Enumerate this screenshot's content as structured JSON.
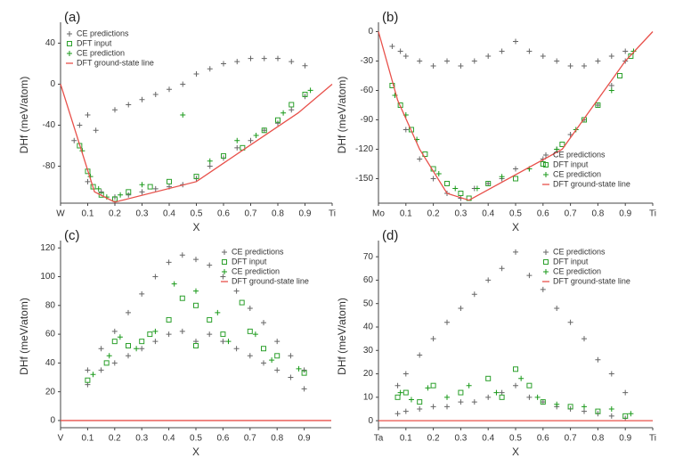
{
  "chart_data": [
    {
      "type": "scatter",
      "label": "(a)",
      "xlabel": "X",
      "ylabel": "DHf (meV/atom)",
      "legend": "upper left",
      "xlim": [
        0,
        1
      ],
      "ylim": [
        -116,
        56
      ],
      "xticks": [
        {
          "value": 0,
          "label": "W"
        },
        0.1,
        0.2,
        0.3,
        0.4,
        0.5,
        0.6,
        0.7,
        0.8,
        0.9,
        {
          "value": 1,
          "label": "Ti"
        }
      ],
      "yticks": [
        40,
        0,
        -40,
        -80
      ],
      "series": [
        {
          "name": "CE predictions",
          "color": "#666666",
          "marker": "plus",
          "x": [
            0.05,
            0.07,
            0.1,
            0.1,
            0.13,
            0.15,
            0.2,
            0.2,
            0.25,
            0.25,
            0.3,
            0.3,
            0.35,
            0.35,
            0.4,
            0.4,
            0.45,
            0.45,
            0.5,
            0.5,
            0.55,
            0.55,
            0.6,
            0.6,
            0.65,
            0.65,
            0.7,
            0.7,
            0.75,
            0.75,
            0.8,
            0.8,
            0.85,
            0.85,
            0.9,
            0.9
          ],
          "y": [
            -55,
            -40,
            -30,
            -95,
            -45,
            -105,
            -25,
            -110,
            -20,
            -108,
            -15,
            -105,
            -10,
            -102,
            -5,
            -100,
            0,
            -98,
            10,
            -92,
            15,
            -80,
            20,
            -72,
            22,
            -62,
            25,
            -55,
            25,
            -45,
            25,
            -38,
            22,
            -25,
            18,
            -12
          ]
        },
        {
          "name": "DFT input",
          "color": "#2ca02c",
          "marker": "square",
          "x": [
            0.07,
            0.1,
            0.12,
            0.15,
            0.2,
            0.25,
            0.33,
            0.4,
            0.5,
            0.6,
            0.67,
            0.75,
            0.8,
            0.85,
            0.9
          ],
          "y": [
            -60,
            -85,
            -100,
            -108,
            -112,
            -105,
            -100,
            -95,
            -90,
            -70,
            -62,
            -45,
            -35,
            -20,
            -10
          ]
        },
        {
          "name": "CE prediction",
          "color": "#1a9a1a",
          "marker": "plus",
          "x": [
            0.08,
            0.11,
            0.14,
            0.17,
            0.22,
            0.3,
            0.45,
            0.55,
            0.65,
            0.72,
            0.82,
            0.92
          ],
          "y": [
            -65,
            -90,
            -102,
            -110,
            -108,
            -98,
            -30,
            -75,
            -55,
            -50,
            -28,
            -6
          ]
        },
        {
          "name": "DFT ground-state line",
          "color": "#e8504a",
          "marker": "line",
          "x": [
            0,
            0.125,
            0.2,
            0.5,
            0.667,
            0.875,
            1
          ],
          "y": [
            0,
            -105,
            -115,
            -95,
            -65,
            -28,
            0
          ]
        }
      ]
    },
    {
      "type": "scatter",
      "label": "(b)",
      "xlabel": "X",
      "ylabel": "DHf (meV/atom)",
      "legend": "lower right",
      "xlim": [
        0,
        1
      ],
      "ylim": [
        -175,
        5
      ],
      "xticks": [
        {
          "value": 0,
          "label": "Mo"
        },
        0.1,
        0.2,
        0.3,
        0.4,
        0.5,
        0.6,
        0.7,
        0.8,
        0.9,
        {
          "value": 1,
          "label": "Ti"
        }
      ],
      "yticks": [
        0,
        -30,
        -60,
        -90,
        -120,
        -150
      ],
      "series": [
        {
          "name": "CE predictions",
          "color": "#666666",
          "marker": "plus",
          "x": [
            0.05,
            0.08,
            0.1,
            0.1,
            0.15,
            0.15,
            0.2,
            0.2,
            0.25,
            0.25,
            0.3,
            0.3,
            0.35,
            0.35,
            0.4,
            0.4,
            0.45,
            0.45,
            0.5,
            0.5,
            0.55,
            0.55,
            0.6,
            0.6,
            0.65,
            0.65,
            0.7,
            0.7,
            0.75,
            0.75,
            0.8,
            0.8,
            0.85,
            0.85,
            0.9,
            0.9
          ],
          "y": [
            -15,
            -20,
            -25,
            -100,
            -30,
            -130,
            -35,
            -150,
            -30,
            -165,
            -35,
            -170,
            -30,
            -160,
            -25,
            -155,
            -20,
            -150,
            -10,
            -140,
            -20,
            -140,
            -25,
            -130,
            -30,
            -120,
            -35,
            -105,
            -35,
            -90,
            -30,
            -75,
            -25,
            -55,
            -20,
            -30
          ]
        },
        {
          "name": "DFT input",
          "color": "#2ca02c",
          "marker": "square",
          "x": [
            0.05,
            0.08,
            0.12,
            0.17,
            0.2,
            0.25,
            0.3,
            0.33,
            0.4,
            0.5,
            0.6,
            0.67,
            0.75,
            0.8,
            0.88,
            0.92
          ],
          "y": [
            -55,
            -75,
            -100,
            -125,
            -140,
            -155,
            -165,
            -170,
            -155,
            -150,
            -135,
            -115,
            -90,
            -75,
            -45,
            -25
          ]
        },
        {
          "name": "CE prediction",
          "color": "#1a9a1a",
          "marker": "plus",
          "x": [
            0.06,
            0.1,
            0.14,
            0.22,
            0.28,
            0.36,
            0.45,
            0.55,
            0.65,
            0.72,
            0.85,
            0.93
          ],
          "y": [
            -65,
            -85,
            -110,
            -145,
            -160,
            -160,
            -148,
            -140,
            -120,
            -100,
            -60,
            -20
          ]
        },
        {
          "name": "DFT ground-state line",
          "color": "#e8504a",
          "marker": "line",
          "x": [
            0,
            0.07,
            0.15,
            0.25,
            0.33,
            0.67,
            0.9,
            1
          ],
          "y": [
            0,
            -70,
            -120,
            -165,
            -172,
            -120,
            -30,
            0
          ]
        }
      ]
    },
    {
      "type": "scatter",
      "label": "(c)",
      "xlabel": "X",
      "ylabel": "DHf (meV/atom)",
      "legend": "upper right",
      "xlim": [
        0,
        1
      ],
      "ylim": [
        -5,
        122
      ],
      "xticks": [
        {
          "value": 0,
          "label": "V"
        },
        0.1,
        0.2,
        0.3,
        0.4,
        0.5,
        0.6,
        0.7,
        0.8,
        0.9
      ],
      "yticks": [
        0,
        20,
        40,
        60,
        80,
        100,
        120
      ],
      "series": [
        {
          "name": "CE predictions",
          "color": "#666666",
          "marker": "plus",
          "x": [
            0.1,
            0.1,
            0.15,
            0.15,
            0.2,
            0.2,
            0.25,
            0.25,
            0.3,
            0.3,
            0.35,
            0.35,
            0.4,
            0.4,
            0.45,
            0.45,
            0.5,
            0.5,
            0.55,
            0.55,
            0.6,
            0.6,
            0.65,
            0.65,
            0.7,
            0.7,
            0.75,
            0.75,
            0.8,
            0.8,
            0.85,
            0.85,
            0.9,
            0.9
          ],
          "y": [
            35,
            25,
            50,
            35,
            62,
            40,
            75,
            45,
            88,
            50,
            100,
            55,
            110,
            60,
            115,
            62,
            112,
            55,
            108,
            60,
            100,
            55,
            90,
            50,
            78,
            45,
            68,
            40,
            55,
            35,
            45,
            30,
            35,
            22
          ]
        },
        {
          "name": "DFT input",
          "color": "#2ca02c",
          "marker": "square",
          "x": [
            0.1,
            0.17,
            0.2,
            0.25,
            0.3,
            0.33,
            0.4,
            0.45,
            0.5,
            0.5,
            0.55,
            0.6,
            0.67,
            0.7,
            0.75,
            0.8,
            0.9
          ],
          "y": [
            28,
            40,
            55,
            52,
            55,
            60,
            70,
            85,
            52,
            80,
            70,
            60,
            82,
            62,
            50,
            45,
            33
          ]
        },
        {
          "name": "CE prediction",
          "color": "#1a9a1a",
          "marker": "plus",
          "x": [
            0.12,
            0.18,
            0.22,
            0.28,
            0.35,
            0.42,
            0.5,
            0.58,
            0.62,
            0.72,
            0.78,
            0.88
          ],
          "y": [
            32,
            45,
            58,
            50,
            62,
            95,
            90,
            75,
            55,
            60,
            42,
            36
          ]
        },
        {
          "name": "DFT ground-state line",
          "color": "#e8504a",
          "marker": "line",
          "x": [
            0,
            1
          ],
          "y": [
            0,
            0
          ]
        }
      ]
    },
    {
      "type": "scatter",
      "label": "(d)",
      "xlabel": "X",
      "ylabel": "DHf (meV/atom)",
      "legend": "upper right",
      "xlim": [
        0,
        1
      ],
      "ylim": [
        -3,
        75
      ],
      "xticks": [
        {
          "value": 0,
          "label": "Ta"
        },
        0.1,
        0.2,
        0.3,
        0.4,
        0.5,
        0.6,
        0.7,
        0.8,
        0.9,
        {
          "value": 1,
          "label": "Ti"
        }
      ],
      "yticks": [
        0,
        10,
        20,
        30,
        40,
        50,
        60,
        70
      ],
      "series": [
        {
          "name": "CE predictions",
          "color": "#666666",
          "marker": "plus",
          "x": [
            0.07,
            0.07,
            0.1,
            0.1,
            0.15,
            0.15,
            0.2,
            0.2,
            0.25,
            0.25,
            0.3,
            0.3,
            0.35,
            0.35,
            0.4,
            0.4,
            0.45,
            0.45,
            0.5,
            0.5,
            0.55,
            0.55,
            0.6,
            0.6,
            0.65,
            0.65,
            0.7,
            0.7,
            0.75,
            0.75,
            0.8,
            0.8,
            0.85,
            0.85,
            0.9,
            0.9
          ],
          "y": [
            15,
            3,
            20,
            4,
            28,
            5,
            35,
            6,
            42,
            6,
            48,
            8,
            54,
            8,
            60,
            10,
            65,
            12,
            72,
            15,
            62,
            10,
            56,
            8,
            48,
            6,
            42,
            5,
            35,
            4,
            26,
            3,
            20,
            2,
            12,
            1
          ]
        },
        {
          "name": "DFT input",
          "color": "#2ca02c",
          "marker": "square",
          "x": [
            0.07,
            0.1,
            0.15,
            0.2,
            0.3,
            0.4,
            0.45,
            0.5,
            0.55,
            0.6,
            0.7,
            0.8,
            0.9
          ],
          "y": [
            10,
            12,
            8,
            15,
            12,
            18,
            10,
            22,
            15,
            8,
            6,
            4,
            2
          ]
        },
        {
          "name": "CE prediction",
          "color": "#1a9a1a",
          "marker": "plus",
          "x": [
            0.08,
            0.12,
            0.18,
            0.25,
            0.33,
            0.43,
            0.52,
            0.58,
            0.65,
            0.75,
            0.85,
            0.92
          ],
          "y": [
            12,
            9,
            14,
            10,
            15,
            12,
            18,
            10,
            7,
            6,
            5,
            3
          ]
        },
        {
          "name": "DFT ground-state line",
          "color": "#e8504a",
          "marker": "line",
          "x": [
            0,
            1
          ],
          "y": [
            0,
            0
          ]
        }
      ]
    }
  ]
}
